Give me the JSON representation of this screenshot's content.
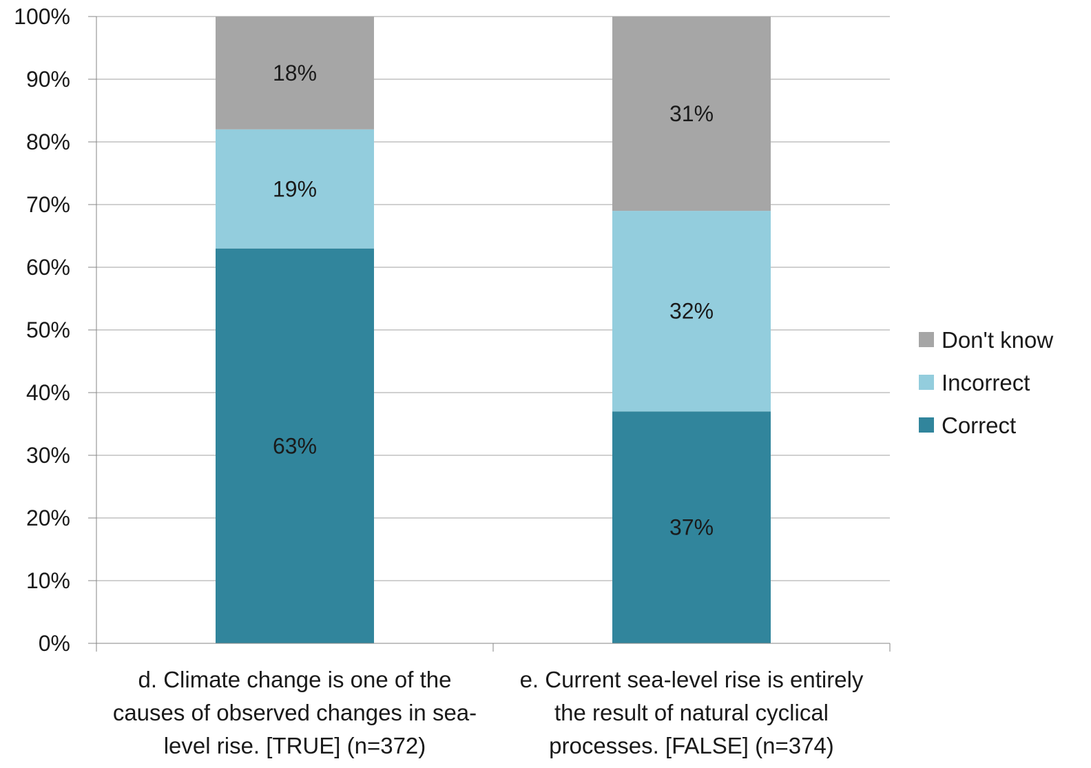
{
  "chart_data": {
    "type": "bar",
    "stacked": true,
    "categories": [
      [
        "d. Climate change is one of the",
        "causes of observed changes in sea-",
        "level rise. [TRUE] (n=372)"
      ],
      [
        "e. Current sea-level rise is entirely",
        "the result of natural cyclical",
        "processes. [FALSE] (n=374)"
      ]
    ],
    "series": [
      {
        "name": "Correct",
        "values": [
          63,
          37
        ],
        "labels": [
          "63%",
          "37%"
        ],
        "color": "#31859C"
      },
      {
        "name": "Incorrect",
        "values": [
          19,
          32
        ],
        "labels": [
          "19%",
          "32%"
        ],
        "color": "#93CDDD"
      },
      {
        "name": "Don't know",
        "values": [
          18,
          31
        ],
        "labels": [
          "18%",
          "31%"
        ],
        "color": "#A6A6A6"
      }
    ],
    "y_ticks": [
      "0%",
      "10%",
      "20%",
      "30%",
      "40%",
      "50%",
      "60%",
      "70%",
      "80%",
      "90%",
      "100%"
    ],
    "ylim": [
      0,
      100
    ],
    "y_format": "percent",
    "grid": true,
    "legend_position": "right",
    "legend_order": [
      "Don't know",
      "Incorrect",
      "Correct"
    ],
    "gridline_color": "#A0A0A0",
    "axis_color": "#868686"
  }
}
